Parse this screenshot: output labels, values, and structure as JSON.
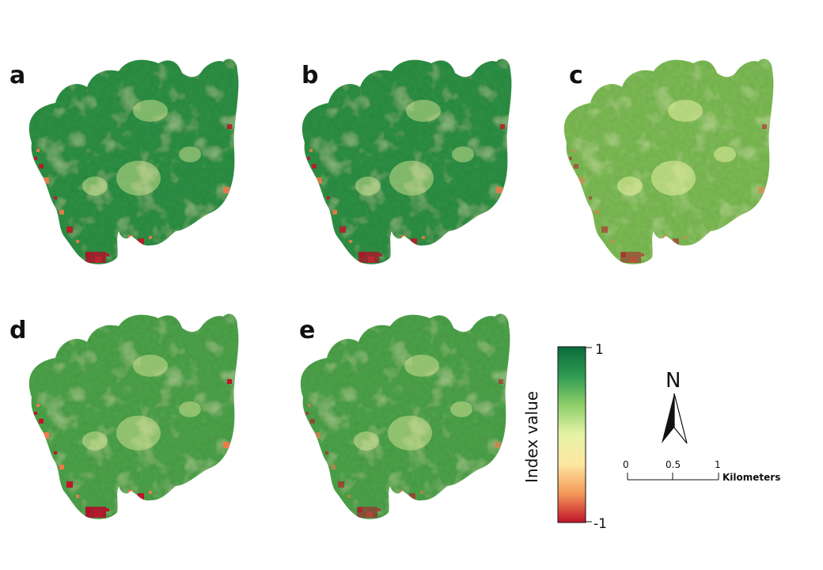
{
  "panels": [
    {
      "label": "a",
      "variant": "dark-green",
      "red_level": 0.9
    },
    {
      "label": "b",
      "variant": "dark-green",
      "red_level": 0.85
    },
    {
      "label": "c",
      "variant": "light-green",
      "red_level": 0.55
    },
    {
      "label": "d",
      "variant": "mid-green",
      "red_level": 1.0
    },
    {
      "label": "e",
      "variant": "mid-green",
      "red_level": 0.6
    }
  ],
  "legend": {
    "title": "Index value",
    "max_label": "1",
    "min_label": "-1",
    "colors": [
      "#0a6b3a",
      "#2f9b52",
      "#8fcf6a",
      "#e6f3a6",
      "#fde7a0",
      "#f59a5a",
      "#c0142a"
    ]
  },
  "north_arrow": {
    "letter": "N",
    "icon": "north-arrow-icon"
  },
  "scale_bar": {
    "ticks": [
      "0",
      "0.5",
      "1"
    ],
    "unit": "Kilometers"
  },
  "colors": {
    "text": "#111111",
    "red": "#c0142a"
  }
}
